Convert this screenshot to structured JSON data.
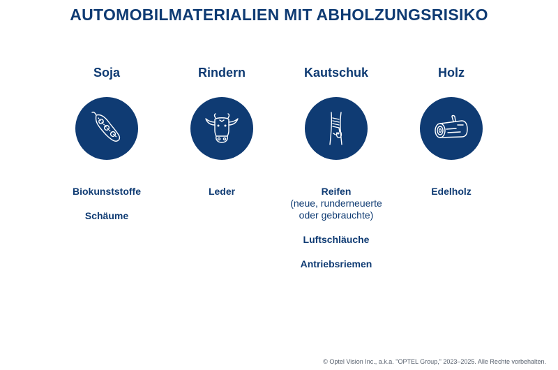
{
  "title": "AUTOMOBILMATERIALIEN MIT ABHOLZUNGSRISIKO",
  "columns": [
    {
      "heading": "Soja",
      "icon": "soybean-icon",
      "materials": [
        {
          "label": "Biokunststoffe"
        },
        {
          "label": "Schäume"
        }
      ]
    },
    {
      "heading": "Rindern",
      "icon": "cow-icon",
      "materials": [
        {
          "label": "Leder"
        }
      ]
    },
    {
      "heading": "Kautschuk",
      "icon": "rubber-tree-icon",
      "materials": [
        {
          "label": "Reifen",
          "sub": "(neue, runderneuerte oder gebrauchte)"
        },
        {
          "label": "Luftschläuche"
        },
        {
          "label": "Antriebsriemen"
        }
      ]
    },
    {
      "heading": "Holz",
      "icon": "log-icon",
      "materials": [
        {
          "label": "Edelholz"
        }
      ]
    }
  ],
  "copyright": "© Optel Vision Inc., a.k.a. \"OPTEL Group,\" 2023–2025. Alle Rechte vorbehalten.",
  "colors": {
    "primary": "#0f3b73",
    "background": "#ffffff"
  }
}
